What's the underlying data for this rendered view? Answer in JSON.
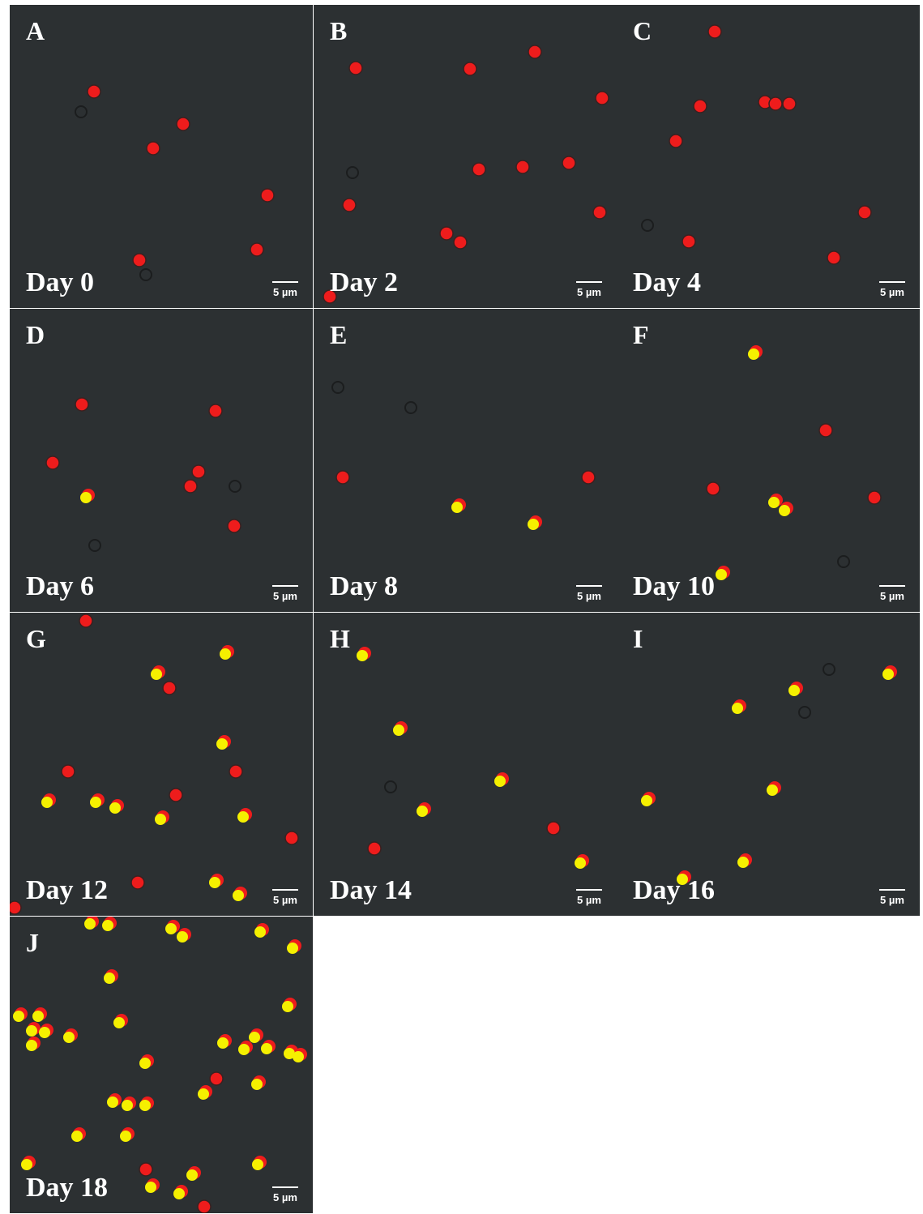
{
  "panels": [
    {
      "letter": "A",
      "day": "Day 0",
      "scale": "5 µm"
    },
    {
      "letter": "B",
      "day": "Day 2",
      "scale": "5 µm"
    },
    {
      "letter": "C",
      "day": "Day 4",
      "scale": "5 µm"
    },
    {
      "letter": "D",
      "day": "Day 6",
      "scale": "5 µm"
    },
    {
      "letter": "E",
      "day": "Day 8",
      "scale": "5 µm"
    },
    {
      "letter": "F",
      "day": "Day 10",
      "scale": "5 µm"
    },
    {
      "letter": "G",
      "day": "Day 12",
      "scale": "5 µm"
    },
    {
      "letter": "H",
      "day": "Day 14",
      "scale": "5 µm"
    },
    {
      "letter": "I",
      "day": "Day 16",
      "scale": "5 µm"
    },
    {
      "letter": "J",
      "day": "Day 18",
      "scale": "5 µm"
    }
  ]
}
